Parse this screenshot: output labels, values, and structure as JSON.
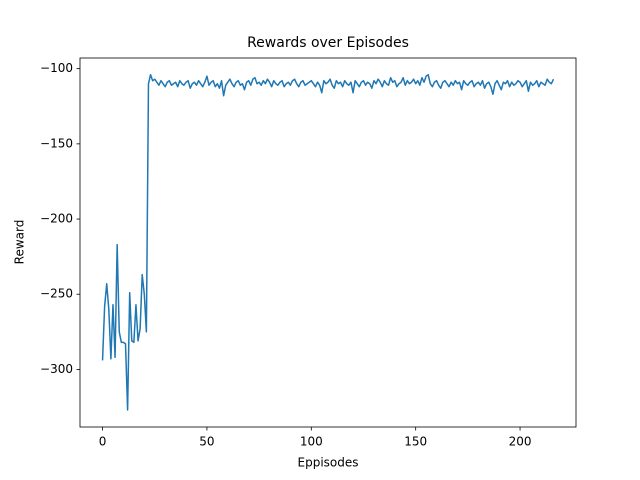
{
  "chart_data": {
    "type": "line",
    "title": "Rewards over Episodes",
    "xlabel": "Eppisodes",
    "ylabel": "Reward",
    "xlim": [
      -10.8,
      226.8
    ],
    "ylim": [
      -338.3,
      -92.9
    ],
    "xticks": [
      0,
      50,
      100,
      150,
      200
    ],
    "yticks": [
      {
        "value": -300,
        "label": "−300"
      },
      {
        "value": -250,
        "label": "−250"
      },
      {
        "value": -200,
        "label": "−200"
      },
      {
        "value": -150,
        "label": "−150"
      },
      {
        "value": -100,
        "label": "−100"
      }
    ],
    "x": [
      0,
      1,
      2,
      3,
      4,
      5,
      6,
      7,
      8,
      9,
      10,
      11,
      12,
      13,
      14,
      15,
      16,
      17,
      18,
      19,
      20,
      21,
      22,
      23,
      24,
      25,
      26,
      27,
      28,
      29,
      30,
      31,
      32,
      33,
      34,
      35,
      36,
      37,
      38,
      39,
      40,
      41,
      42,
      43,
      44,
      45,
      46,
      47,
      48,
      49,
      50,
      51,
      52,
      53,
      54,
      55,
      56,
      57,
      58,
      59,
      60,
      61,
      62,
      63,
      64,
      65,
      66,
      67,
      68,
      69,
      70,
      71,
      72,
      73,
      74,
      75,
      76,
      77,
      78,
      79,
      80,
      81,
      82,
      83,
      84,
      85,
      86,
      87,
      88,
      89,
      90,
      91,
      92,
      93,
      94,
      95,
      96,
      97,
      98,
      99,
      100,
      101,
      102,
      103,
      104,
      105,
      106,
      107,
      108,
      109,
      110,
      111,
      112,
      113,
      114,
      115,
      116,
      117,
      118,
      119,
      120,
      121,
      122,
      123,
      124,
      125,
      126,
      127,
      128,
      129,
      130,
      131,
      132,
      133,
      134,
      135,
      136,
      137,
      138,
      139,
      140,
      141,
      142,
      143,
      144,
      145,
      146,
      147,
      148,
      149,
      150,
      151,
      152,
      153,
      154,
      155,
      156,
      157,
      158,
      159,
      160,
      161,
      162,
      163,
      164,
      165,
      166,
      167,
      168,
      169,
      170,
      171,
      172,
      173,
      174,
      175,
      176,
      177,
      178,
      179,
      180,
      181,
      182,
      183,
      184,
      185,
      186,
      187,
      188,
      189,
      190,
      191,
      192,
      193,
      194,
      195,
      196,
      197,
      198,
      199,
      200,
      201,
      202,
      203,
      204,
      205,
      206,
      207,
      208,
      209,
      210,
      211,
      212,
      213,
      214,
      215,
      216
    ],
    "series": [
      {
        "name": "Reward",
        "color": "#1f77b4",
        "values": [
          -294,
          -258,
          -243,
          -260,
          -293,
          -257,
          -292,
          -217,
          -275,
          -282,
          -282,
          -283,
          -327,
          -249,
          -281,
          -282,
          -257,
          -281,
          -273,
          -237,
          -250,
          -275,
          -110,
          -104,
          -108,
          -107,
          -109,
          -111,
          -108,
          -110,
          -112,
          -109,
          -108,
          -111,
          -110,
          -109,
          -112,
          -108,
          -110,
          -111,
          -109,
          -108,
          -113,
          -110,
          -109,
          -111,
          -108,
          -110,
          -112,
          -109,
          -105,
          -111,
          -109,
          -108,
          -112,
          -110,
          -113,
          -108,
          -118,
          -111,
          -109,
          -107,
          -110,
          -112,
          -109,
          -108,
          -111,
          -110,
          -114,
          -109,
          -108,
          -111,
          -107,
          -106,
          -110,
          -109,
          -111,
          -108,
          -110,
          -107,
          -109,
          -112,
          -108,
          -110,
          -111,
          -109,
          -108,
          -112,
          -110,
          -109,
          -111,
          -108,
          -107,
          -110,
          -112,
          -109,
          -108,
          -111,
          -110,
          -109,
          -108,
          -110,
          -112,
          -109,
          -111,
          -116,
          -108,
          -110,
          -109,
          -107,
          -111,
          -113,
          -108,
          -110,
          -109,
          -112,
          -108,
          -110,
          -111,
          -109,
          -116,
          -108,
          -110,
          -112,
          -109,
          -108,
          -111,
          -109,
          -110,
          -113,
          -108,
          -110,
          -107,
          -109,
          -112,
          -108,
          -110,
          -111,
          -106,
          -109,
          -108,
          -112,
          -110,
          -109,
          -106,
          -111,
          -108,
          -110,
          -109,
          -107,
          -110,
          -108,
          -111,
          -106,
          -109,
          -105,
          -104,
          -110,
          -112,
          -109,
          -108,
          -111,
          -113,
          -109,
          -108,
          -110,
          -112,
          -109,
          -111,
          -108,
          -110,
          -109,
          -114,
          -108,
          -110,
          -111,
          -109,
          -108,
          -112,
          -110,
          -109,
          -111,
          -108,
          -113,
          -110,
          -109,
          -112,
          -117,
          -110,
          -108,
          -111,
          -114,
          -109,
          -110,
          -108,
          -112,
          -109,
          -111,
          -110,
          -108,
          -109,
          -112,
          -110,
          -108,
          -115,
          -109,
          -111,
          -110,
          -108,
          -112,
          -109,
          -110,
          -111,
          -107,
          -109,
          -110,
          -107
        ]
      }
    ]
  }
}
